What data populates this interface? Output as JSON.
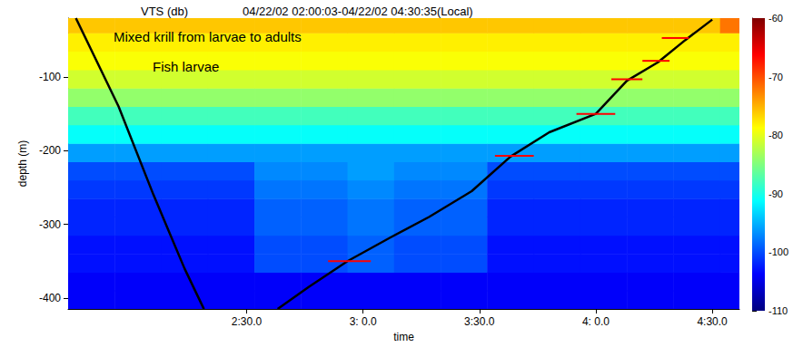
{
  "chart_data": {
    "type": "heatmap",
    "title": "VTS (db)",
    "subtitle": "04/22/02 02:00:03-04/22/02 04:30:35(Local)",
    "x_label": "time",
    "y_label": "depth (m)",
    "annotations": [
      "Mixed krill from larvae to adults",
      "Fish larvae"
    ],
    "xlim": [
      104,
      277
    ],
    "xticks": [
      {
        "value": 150,
        "label": "2:30.0"
      },
      {
        "value": 180,
        "label": "3: 0.0"
      },
      {
        "value": 210,
        "label": "3:30.0"
      },
      {
        "value": 240,
        "label": "4: 0.0"
      },
      {
        "value": 270,
        "label": "4:30.0"
      }
    ],
    "ylim": [
      -415,
      -20
    ],
    "yticks": [
      -100,
      -200,
      -300,
      -400
    ],
    "grid": false,
    "heatmap": {
      "x_bins": [
        104,
        116,
        128,
        140,
        152,
        164,
        176,
        188,
        200,
        212,
        224,
        236,
        248,
        260,
        272,
        277
      ],
      "y_bins": [
        -415,
        -390,
        -365,
        -340,
        -315,
        -290,
        -265,
        -240,
        -215,
        -190,
        -165,
        -140,
        -115,
        -90,
        -65,
        -40,
        -20
      ],
      "values": [
        [
          -104,
          -104,
          -104,
          -104,
          -104,
          -104,
          -104,
          -104,
          -104,
          -104,
          -104,
          -104,
          -104,
          -104,
          -104
        ],
        [
          -104,
          -104,
          -104,
          -104,
          -104,
          -104,
          -104,
          -104,
          -104,
          -104,
          -104,
          -104,
          -104,
          -104,
          -104
        ],
        [
          -103,
          -103,
          -103,
          -103,
          -100,
          -100,
          -99,
          -100,
          -100,
          -103,
          -103,
          -103,
          -103,
          -103,
          -103
        ],
        [
          -103,
          -103,
          -103,
          -103,
          -100,
          -100,
          -99,
          -100,
          -100,
          -103,
          -103,
          -103,
          -103,
          -103,
          -103
        ],
        [
          -102,
          -102,
          -102,
          -102,
          -99,
          -99,
          -98,
          -99,
          -99,
          -102,
          -102,
          -102,
          -102,
          -102,
          -102
        ],
        [
          -102,
          -102,
          -102,
          -102,
          -99,
          -99,
          -98,
          -99,
          -99,
          -102,
          -102,
          -102,
          -102,
          -102,
          -102
        ],
        [
          -101,
          -101,
          -101,
          -101,
          -98,
          -98,
          -97,
          -98,
          -98,
          -101,
          -101,
          -101,
          -101,
          -101,
          -101
        ],
        [
          -100,
          -100,
          -100,
          -100,
          -97,
          -97,
          -96,
          -97,
          -97,
          -100,
          -100,
          -100,
          -100,
          -100,
          -100
        ],
        [
          -96,
          -96,
          -96,
          -96,
          -96,
          -96,
          -96,
          -96,
          -96,
          -96,
          -96,
          -96,
          -96,
          -96,
          -96
        ],
        [
          -91,
          -91,
          -91,
          -91,
          -91,
          -91,
          -91,
          -91,
          -91,
          -91,
          -91,
          -91,
          -91,
          -91,
          -91
        ],
        [
          -88,
          -88,
          -88,
          -88,
          -88,
          -88,
          -88,
          -88,
          -88,
          -88,
          -88,
          -88,
          -88,
          -88,
          -88
        ],
        [
          -84,
          -84,
          -84,
          -84,
          -84,
          -84,
          -84,
          -84,
          -84,
          -84,
          -84,
          -84,
          -84,
          -84,
          -84
        ],
        [
          -81,
          -81,
          -81,
          -81,
          -81,
          -81,
          -81,
          -81,
          -81,
          -81,
          -81,
          -81,
          -81,
          -81,
          -81
        ],
        [
          -79,
          -79,
          -79,
          -79,
          -79,
          -79,
          -79,
          -79,
          -79,
          -79,
          -79,
          -79,
          -79,
          -79,
          -79
        ],
        [
          -78,
          -78,
          -78,
          -78,
          -78,
          -78,
          -78,
          -78,
          -78,
          -78,
          -78,
          -78,
          -78,
          -78,
          -78
        ],
        [
          -76,
          -76,
          -76,
          -76,
          -76,
          -76,
          -76,
          -76,
          -76,
          -76,
          -76,
          -76,
          -76,
          -76,
          -72
        ]
      ]
    },
    "colorbar": {
      "range": [
        -110,
        -60
      ],
      "ticks": [
        -110,
        -100,
        -90,
        -80,
        -70,
        -60
      ]
    },
    "series": [
      {
        "type": "line",
        "color": "#000000",
        "x": [
          106,
          117,
          126,
          134,
          139,
          149,
          158,
          166,
          176,
          187,
          197,
          208,
          218,
          228,
          240,
          248,
          256,
          263,
          270
        ],
        "values": [
          -20,
          -140,
          -260,
          -360,
          -415,
          null,
          -415,
          -385,
          -350,
          -318,
          -290,
          -255,
          -208,
          -175,
          -150,
          -105,
          -80,
          -50,
          -22
        ]
      },
      {
        "type": "line",
        "color": "#ff0000",
        "x": [
          171,
          182
        ],
        "values": [
          -350,
          -350
        ]
      },
      {
        "type": "line",
        "color": "#ff0000",
        "x": [
          214,
          224
        ],
        "values": [
          -207,
          -207
        ]
      },
      {
        "type": "line",
        "color": "#ff0000",
        "x": [
          235,
          245
        ],
        "values": [
          -150,
          -150
        ]
      },
      {
        "type": "line",
        "color": "#ff0000",
        "x": [
          244,
          252
        ],
        "values": [
          -103,
          -103
        ]
      },
      {
        "type": "line",
        "color": "#ff0000",
        "x": [
          252,
          259
        ],
        "values": [
          -78,
          -78
        ]
      },
      {
        "type": "line",
        "color": "#ff0000",
        "x": [
          257,
          264
        ],
        "values": [
          -47,
          -47
        ]
      }
    ]
  }
}
